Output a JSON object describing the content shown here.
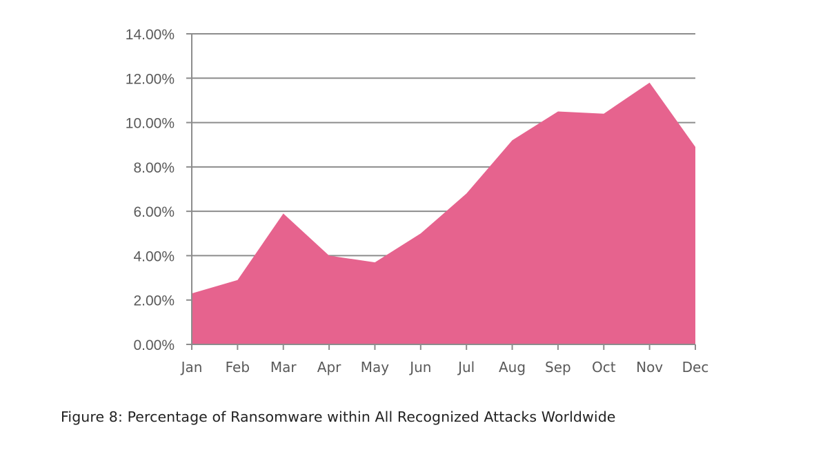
{
  "chart_data": {
    "type": "area",
    "categories": [
      "Jan",
      "Feb",
      "Mar",
      "Apr",
      "May",
      "Jun",
      "Jul",
      "Aug",
      "Sep",
      "Oct",
      "Nov",
      "Dec"
    ],
    "values": [
      2.3,
      2.9,
      5.9,
      4.0,
      3.7,
      5.0,
      6.8,
      9.2,
      10.5,
      10.4,
      11.8,
      8.9
    ],
    "value_unit": "percent",
    "ylim": [
      0,
      14
    ],
    "yticks": [
      "0.00%",
      "2.00%",
      "4.00%",
      "6.00%",
      "8.00%",
      "10.00%",
      "12.00%",
      "14.00%"
    ],
    "ytick_values": [
      0,
      2,
      4,
      6,
      8,
      10,
      12,
      14
    ],
    "grid": true,
    "fill_color": "#E6638E",
    "grid_color": "#8C8C8C"
  },
  "caption": "Figure 8: Percentage of Ransomware within All Recognized Attacks Worldwide"
}
